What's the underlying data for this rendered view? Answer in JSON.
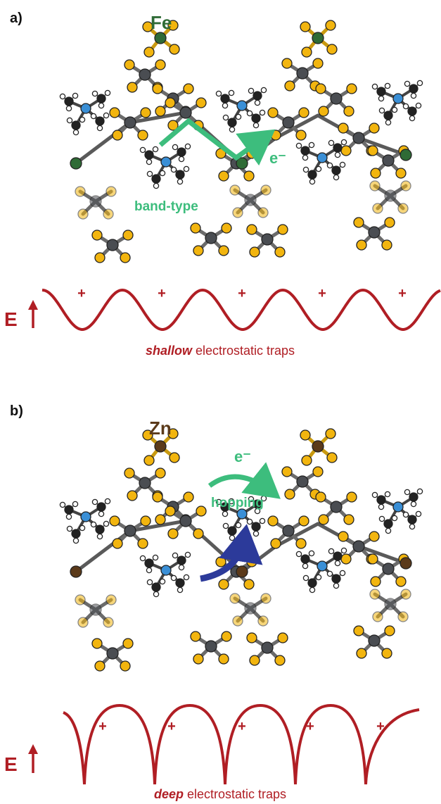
{
  "panel_a": {
    "label": "a)",
    "metal": "Fe",
    "metal_color": "#2f6b36",
    "electron": "e⁻",
    "transport": "band-type",
    "energy_symbol": "E",
    "caption_emphasis": "shallow",
    "caption_rest": " electrostatic traps",
    "plus_signs": [
      "+",
      "+",
      "+",
      "+",
      "+"
    ]
  },
  "panel_b": {
    "label": "b)",
    "metal": "Zn",
    "metal_color": "#5b3a1a",
    "electron": "e⁻",
    "transport": "hopping",
    "energy_symbol": "E",
    "caption_emphasis": "deep",
    "caption_rest": " electrostatic traps",
    "plus_signs": [
      "+",
      "+",
      "+",
      "+",
      "+"
    ]
  },
  "colors": {
    "sulfur": "#f2b50f",
    "carbon_dark": "#4a4d52",
    "nitrogen": "#3a8fd6",
    "hydrogen": "#ffffff",
    "green_arrow": "#3dbd7d",
    "blue_arrow": "#2c3a9a",
    "potential": "#b01e24"
  }
}
